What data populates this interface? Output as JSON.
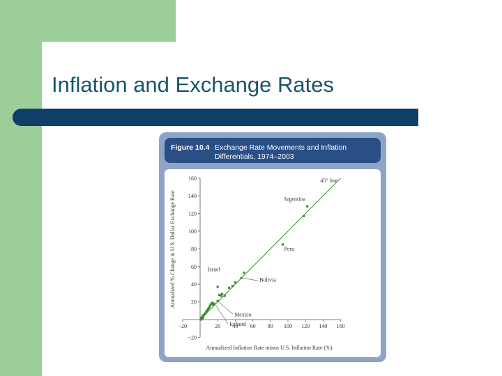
{
  "slide": {
    "title": "Inflation and Exchange Rates",
    "colors": {
      "accent_green": "#9dcd9a",
      "rule_navy": "#0f3f68",
      "title_teal": "#17566a",
      "figure_frame": "#8da4c8",
      "caption_blue": "#2a4f86",
      "data_green": "#3a8c2c"
    }
  },
  "figure": {
    "number": "Figure 10.4",
    "caption": "Exchange Rate Movements and Inflation Differentials, 1974–2003"
  },
  "chart_data": {
    "type": "scatter",
    "title": "",
    "xlabel": "Annualized Inflation Rate minus U.S. Inflation Rate (%)",
    "ylabel": "Annualized % Change in U.S. Dollar Exchange Rate",
    "xlim": [
      -20,
      160
    ],
    "ylim": [
      -20,
      160
    ],
    "xticks": [
      -20,
      20,
      40,
      60,
      80,
      100,
      120,
      140,
      160
    ],
    "yticks": [
      -20,
      20,
      40,
      60,
      80,
      100,
      120,
      140,
      160
    ],
    "grid": false,
    "reference_line": {
      "label": "45° line",
      "from": [
        0,
        0
      ],
      "to": [
        160,
        160
      ]
    },
    "series": [
      {
        "points": [
          {
            "x": 1,
            "y": 0
          },
          {
            "x": 1.5,
            "y": 2
          },
          {
            "x": 2,
            "y": 1
          },
          {
            "x": 2.5,
            "y": 3
          },
          {
            "x": 3,
            "y": 4
          },
          {
            "x": 4,
            "y": 5
          },
          {
            "x": 3.5,
            "y": 2
          },
          {
            "x": 5,
            "y": 6
          },
          {
            "x": 6,
            "y": 7
          },
          {
            "x": 7,
            "y": 9
          },
          {
            "x": 8,
            "y": 10
          },
          {
            "x": 9,
            "y": 12
          },
          {
            "x": 10,
            "y": 13
          },
          {
            "x": 11,
            "y": 15
          },
          {
            "x": 12,
            "y": 17
          },
          {
            "x": 13,
            "y": 18
          },
          {
            "x": 14,
            "y": 19
          },
          {
            "x": 15,
            "y": 17
          },
          {
            "x": 16,
            "y": 18
          },
          {
            "x": 20,
            "y": 21
          },
          {
            "x": 22,
            "y": 28
          },
          {
            "x": 24,
            "y": 27
          },
          {
            "x": 25,
            "y": 29
          },
          {
            "x": 28,
            "y": 27
          },
          {
            "x": 20,
            "y": 37
          },
          {
            "x": 33,
            "y": 36
          },
          {
            "x": 37,
            "y": 38
          },
          {
            "x": 40,
            "y": 42
          },
          {
            "x": 47,
            "y": 47
          },
          {
            "x": 50,
            "y": 53
          },
          {
            "x": 94,
            "y": 85
          },
          {
            "x": 118,
            "y": 117
          },
          {
            "x": 122,
            "y": 128
          }
        ]
      }
    ],
    "annotations": [
      {
        "text": "Argentina",
        "x": 120,
        "y": 128
      },
      {
        "text": "Peru",
        "x": 94,
        "y": 85
      },
      {
        "text": "Israel",
        "x": 50,
        "y": 53
      },
      {
        "text": "Bolivia",
        "x": 47,
        "y": 47
      },
      {
        "text": "Mexico",
        "x": 20,
        "y": 21
      },
      {
        "text": "Iceland",
        "x": 16,
        "y": 18
      }
    ]
  }
}
